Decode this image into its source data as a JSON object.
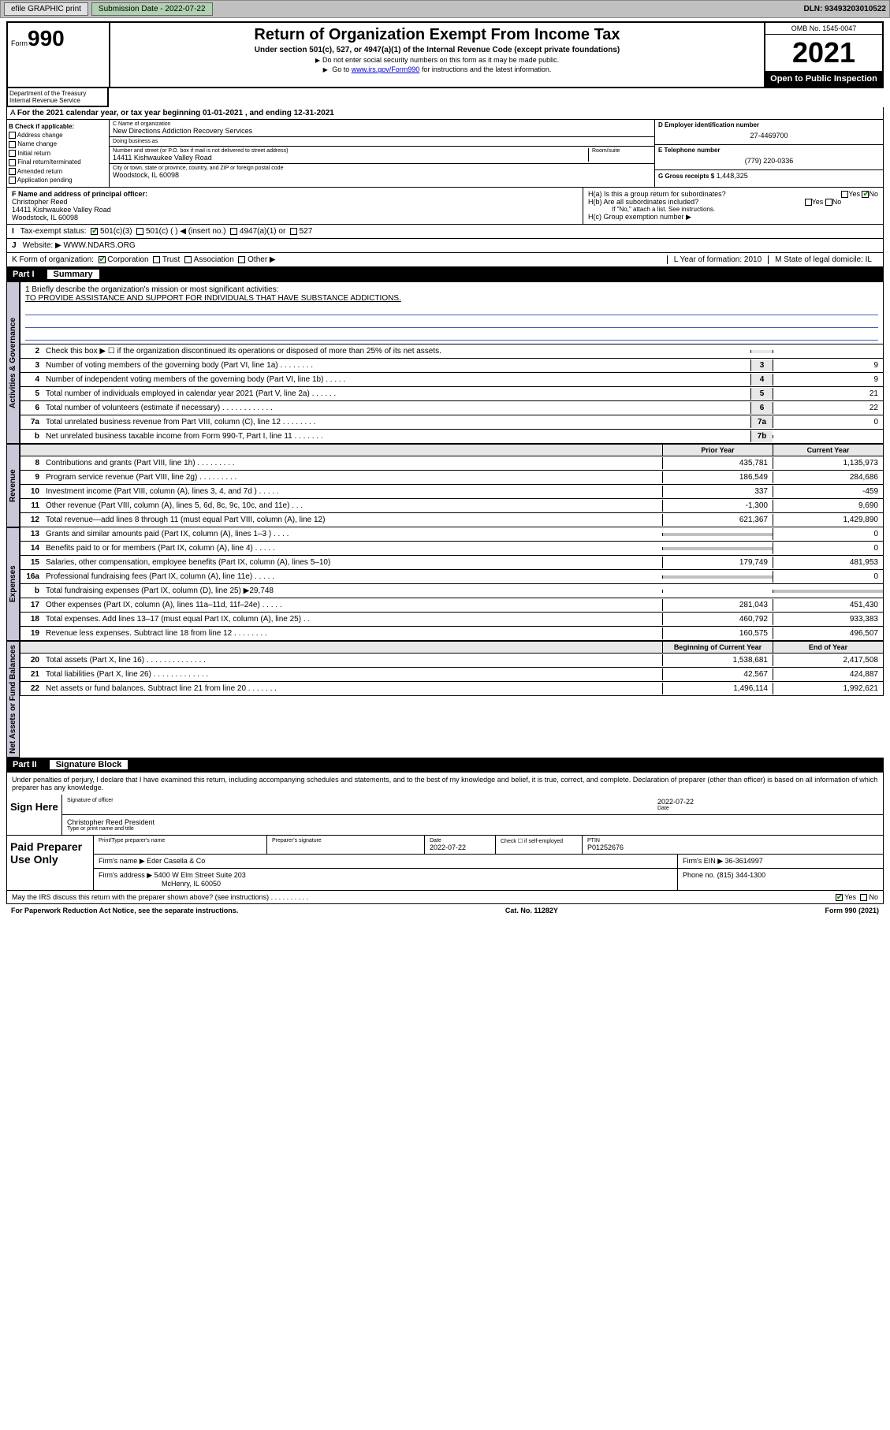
{
  "toolbar": {
    "efile": "efile GRAPHIC print",
    "submission_label": "Submission Date - 2022-07-22",
    "dln": "DLN: 93493203010522"
  },
  "header": {
    "form_prefix": "Form",
    "form_num": "990",
    "dept": "Department of the Treasury\nInternal Revenue Service",
    "title": "Return of Organization Exempt From Income Tax",
    "subtitle": "Under section 501(c), 527, or 4947(a)(1) of the Internal Revenue Code (except private foundations)",
    "note1": "Do not enter social security numbers on this form as it may be made public.",
    "note2_pre": "Go to ",
    "note2_link": "www.irs.gov/Form990",
    "note2_post": " for instructions and the latest information.",
    "omb": "OMB No. 1545-0047",
    "year": "2021",
    "inspect": "Open to Public Inspection"
  },
  "line_a": "For the 2021 calendar year, or tax year beginning 01-01-2021   , and ending 12-31-2021",
  "box_b": {
    "title": "B Check if applicable:",
    "items": [
      "Address change",
      "Name change",
      "Initial return",
      "Final return/terminated",
      "Amended return",
      "Application pending"
    ]
  },
  "box_c": {
    "name_label": "C Name of organization",
    "name": "New Directions Addiction Recovery Services",
    "dba_label": "Doing business as",
    "dba": "",
    "addr_label": "Number and street (or P.O. box if mail is not delivered to street address)",
    "room_label": "Room/suite",
    "addr": "14411 Kishwaukee Valley Road",
    "city_label": "City or town, state or province, country, and ZIP or foreign postal code",
    "city": "Woodstock, IL  60098"
  },
  "box_d": {
    "label": "D Employer identification number",
    "val": "27-4469700"
  },
  "box_e": {
    "label": "E Telephone number",
    "val": "(779) 220-0336"
  },
  "box_g": {
    "label": "G Gross receipts $",
    "val": "1,448,325"
  },
  "box_f": {
    "label": "F Name and address of principal officer:",
    "name": "Christopher Reed",
    "addr1": "14411 Kishwaukee Valley Road",
    "addr2": "Woodstock, IL  60098"
  },
  "box_h": {
    "a": "H(a)  Is this a group return for subordinates?",
    "b": "H(b)  Are all subordinates included?",
    "b_note": "If \"No,\" attach a list. See instructions.",
    "c": "H(c)  Group exemption number ▶",
    "yes": "Yes",
    "no": "No"
  },
  "box_i": {
    "label": "Tax-exempt status:",
    "o1": "501(c)(3)",
    "o2": "501(c) (   ) ◀ (insert no.)",
    "o3": "4947(a)(1) or",
    "o4": "527"
  },
  "box_j": {
    "label": "Website: ▶",
    "val": "WWW.NDARS.ORG"
  },
  "box_k": {
    "label": "K Form of organization:",
    "o1": "Corporation",
    "o2": "Trust",
    "o3": "Association",
    "o4": "Other ▶"
  },
  "box_l": {
    "label": "L Year of formation:",
    "val": "2010"
  },
  "box_m": {
    "label": "M State of legal domicile:",
    "val": "IL"
  },
  "part1": {
    "num": "Part I",
    "title": "Summary"
  },
  "mission": {
    "q": "1   Briefly describe the organization's mission or most significant activities:",
    "text": "TO PROVIDE ASSISTANCE AND SUPPORT FOR INDIVIDUALS THAT HAVE SUBSTANCE ADDICTIONS."
  },
  "gov_rows": [
    {
      "n": "2",
      "d": "Check this box ▶ ☐  if the organization discontinued its operations or disposed of more than 25% of its net assets.",
      "nb": "",
      "v": ""
    },
    {
      "n": "3",
      "d": "Number of voting members of the governing body (Part VI, line 1a)   .   .   .   .   .   .   .   .",
      "nb": "3",
      "v": "9"
    },
    {
      "n": "4",
      "d": "Number of independent voting members of the governing body (Part VI, line 1b)   .   .   .   .   .",
      "nb": "4",
      "v": "9"
    },
    {
      "n": "5",
      "d": "Total number of individuals employed in calendar year 2021 (Part V, line 2a)   .   .   .   .   .   .",
      "nb": "5",
      "v": "21"
    },
    {
      "n": "6",
      "d": "Total number of volunteers (estimate if necessary)   .   .   .   .   .   .   .   .   .   .   .   .",
      "nb": "6",
      "v": "22"
    },
    {
      "n": "7a",
      "d": "Total unrelated business revenue from Part VIII, column (C), line 12   .   .   .   .   .   .   .   .",
      "nb": "7a",
      "v": "0"
    },
    {
      "n": "b",
      "d": "Net unrelated business taxable income from Form 990-T, Part I, line 11   .   .   .   .   .   .   .",
      "nb": "7b",
      "v": ""
    }
  ],
  "rev_hdr": {
    "prior": "Prior Year",
    "curr": "Current Year"
  },
  "rev_rows": [
    {
      "n": "8",
      "d": "Contributions and grants (Part VIII, line 1h)   .   .   .   .   .   .   .   .   .",
      "p": "435,781",
      "c": "1,135,973"
    },
    {
      "n": "9",
      "d": "Program service revenue (Part VIII, line 2g)   .   .   .   .   .   .   .   .   .",
      "p": "186,549",
      "c": "284,686"
    },
    {
      "n": "10",
      "d": "Investment income (Part VIII, column (A), lines 3, 4, and 7d )   .   .   .   .   .",
      "p": "337",
      "c": "-459"
    },
    {
      "n": "11",
      "d": "Other revenue (Part VIII, column (A), lines 5, 6d, 8c, 9c, 10c, and 11e)   .   .   .",
      "p": "-1,300",
      "c": "9,690"
    },
    {
      "n": "12",
      "d": "Total revenue—add lines 8 through 11 (must equal Part VIII, column (A), line 12)",
      "p": "621,367",
      "c": "1,429,890"
    }
  ],
  "exp_rows": [
    {
      "n": "13",
      "d": "Grants and similar amounts paid (Part IX, column (A), lines 1–3 )   .   .   .   .",
      "p": "",
      "c": "0"
    },
    {
      "n": "14",
      "d": "Benefits paid to or for members (Part IX, column (A), line 4)   .   .   .   .   .",
      "p": "",
      "c": "0"
    },
    {
      "n": "15",
      "d": "Salaries, other compensation, employee benefits (Part IX, column (A), lines 5–10)",
      "p": "179,749",
      "c": "481,953"
    },
    {
      "n": "16a",
      "d": "Professional fundraising fees (Part IX, column (A), line 11e)   .   .   .   .   .",
      "p": "",
      "c": "0"
    },
    {
      "n": "b",
      "d": "Total fundraising expenses (Part IX, column (D), line 25) ▶29,748",
      "p": "",
      "c": ""
    },
    {
      "n": "17",
      "d": "Other expenses (Part IX, column (A), lines 11a–11d, 11f–24e)   .   .   .   .   .",
      "p": "281,043",
      "c": "451,430"
    },
    {
      "n": "18",
      "d": "Total expenses. Add lines 13–17 (must equal Part IX, column (A), line 25)   .   .",
      "p": "460,792",
      "c": "933,383"
    },
    {
      "n": "19",
      "d": "Revenue less expenses. Subtract line 18 from line 12   .   .   .   .   .   .   .   .",
      "p": "160,575",
      "c": "496,507"
    }
  ],
  "net_hdr": {
    "beg": "Beginning of Current Year",
    "end": "End of Year"
  },
  "net_rows": [
    {
      "n": "20",
      "d": "Total assets (Part X, line 16)   .   .   .   .   .   .   .   .   .   .   .   .   .   .",
      "p": "1,538,681",
      "c": "2,417,508"
    },
    {
      "n": "21",
      "d": "Total liabilities (Part X, line 26)   .   .   .   .   .   .   .   .   .   .   .   .   .",
      "p": "42,567",
      "c": "424,887"
    },
    {
      "n": "22",
      "d": "Net assets or fund balances. Subtract line 21 from line 20   .   .   .   .   .   .   .",
      "p": "1,496,114",
      "c": "1,992,621"
    }
  ],
  "part2": {
    "num": "Part II",
    "title": "Signature Block"
  },
  "sig": {
    "decl": "Under penalties of perjury, I declare that I have examined this return, including accompanying schedules and statements, and to the best of my knowledge and belief, it is true, correct, and complete. Declaration of preparer (other than officer) is based on all information of which preparer has any knowledge.",
    "here": "Sign Here",
    "officer_label": "Signature of officer",
    "date_label": "Date",
    "date": "2022-07-22",
    "name": "Christopher Reed  President",
    "name_label": "Type or print name and title"
  },
  "paid": {
    "title": "Paid Preparer Use Only",
    "h1": "Print/Type preparer's name",
    "h2": "Preparer's signature",
    "h3": "Date",
    "h4": "Check ☐ if self-employed",
    "h5": "PTIN",
    "date": "2022-07-22",
    "ptin": "P01252676",
    "firm_label": "Firm's name   ▶",
    "firm": "Eder Casella & Co",
    "ein_label": "Firm's EIN ▶",
    "ein": "36-3614997",
    "addr_label": "Firm's address ▶",
    "addr1": "5400 W Elm Street Suite 203",
    "addr2": "McHenry, IL  60050",
    "phone_label": "Phone no.",
    "phone": "(815) 344-1300"
  },
  "footer": {
    "q": "May the IRS discuss this return with the preparer shown above? (see instructions)   .   .   .   .   .   .   .   .   .   .",
    "yes": "Yes",
    "no": "No",
    "pra": "For Paperwork Reduction Act Notice, see the separate instructions.",
    "cat": "Cat. No. 11282Y",
    "form": "Form 990 (2021)"
  },
  "vtabs": {
    "gov": "Activities & Governance",
    "rev": "Revenue",
    "exp": "Expenses",
    "net": "Net Assets or Fund Balances"
  }
}
